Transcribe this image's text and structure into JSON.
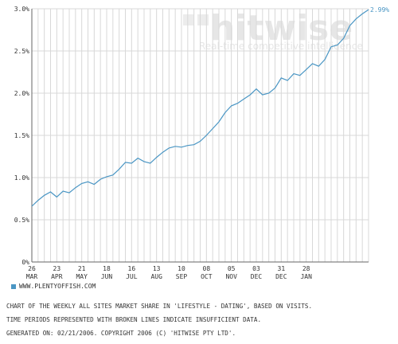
{
  "brand": {
    "logo_text": "hitwise",
    "tagline": "Real-time competitive intelligence"
  },
  "colors": {
    "series": "#4a96c4",
    "grid": "#d8d8d8",
    "axis": "#666666",
    "watermark": "#e6e6e6"
  },
  "legend": {
    "label": "WWW.PLENTYOFFISH.COM"
  },
  "footer": {
    "line1": "CHART OF THE WEEKLY ALL SITES MARKET SHARE IN 'LIFESTYLE - DATING', BASED ON VISITS.",
    "line2": "TIME PERIODS REPRESENTED WITH BROKEN LINES INDICATE INSUFFICIENT DATA.",
    "line3": "GENERATED ON: 02/21/2006. COPYRIGHT 2006 (C) 'HITWISE PTY LTD'."
  },
  "chart_data": {
    "type": "line",
    "title": "",
    "xlabel": "",
    "ylabel": "",
    "ylim": [
      0,
      3.0
    ],
    "y_ticks": [
      "0%",
      "0.5%",
      "1.0%",
      "1.5%",
      "2.0%",
      "2.5%",
      "3.0%"
    ],
    "x_ticks": [
      {
        "day": "26",
        "month": "MAR"
      },
      {
        "day": "23",
        "month": "APR"
      },
      {
        "day": "21",
        "month": "MAY"
      },
      {
        "day": "18",
        "month": "JUN"
      },
      {
        "day": "16",
        "month": "JUL"
      },
      {
        "day": "13",
        "month": "AUG"
      },
      {
        "day": "10",
        "month": "SEP"
      },
      {
        "day": "08",
        "month": "OCT"
      },
      {
        "day": "05",
        "month": "NOV"
      },
      {
        "day": "03",
        "month": "DEC"
      },
      {
        "day": "31",
        "month": "DEC"
      },
      {
        "day": "28",
        "month": "JAN"
      }
    ],
    "end_label": "2.99%",
    "grid": true,
    "series": [
      {
        "name": "WWW.PLENTYOFFISH.COM",
        "values": [
          0.66,
          0.73,
          0.79,
          0.83,
          0.77,
          0.84,
          0.82,
          0.88,
          0.93,
          0.95,
          0.92,
          0.98,
          1.01,
          1.03,
          1.1,
          1.18,
          1.17,
          1.23,
          1.19,
          1.17,
          1.24,
          1.3,
          1.35,
          1.37,
          1.36,
          1.38,
          1.39,
          1.43,
          1.5,
          1.58,
          1.66,
          1.77,
          1.85,
          1.88,
          1.93,
          1.98,
          2.05,
          1.98,
          2.0,
          2.06,
          2.18,
          2.15,
          2.23,
          2.21,
          2.28,
          2.35,
          2.32,
          2.4,
          2.55,
          2.57,
          2.65,
          2.8,
          2.88,
          2.94,
          2.99
        ]
      }
    ]
  }
}
